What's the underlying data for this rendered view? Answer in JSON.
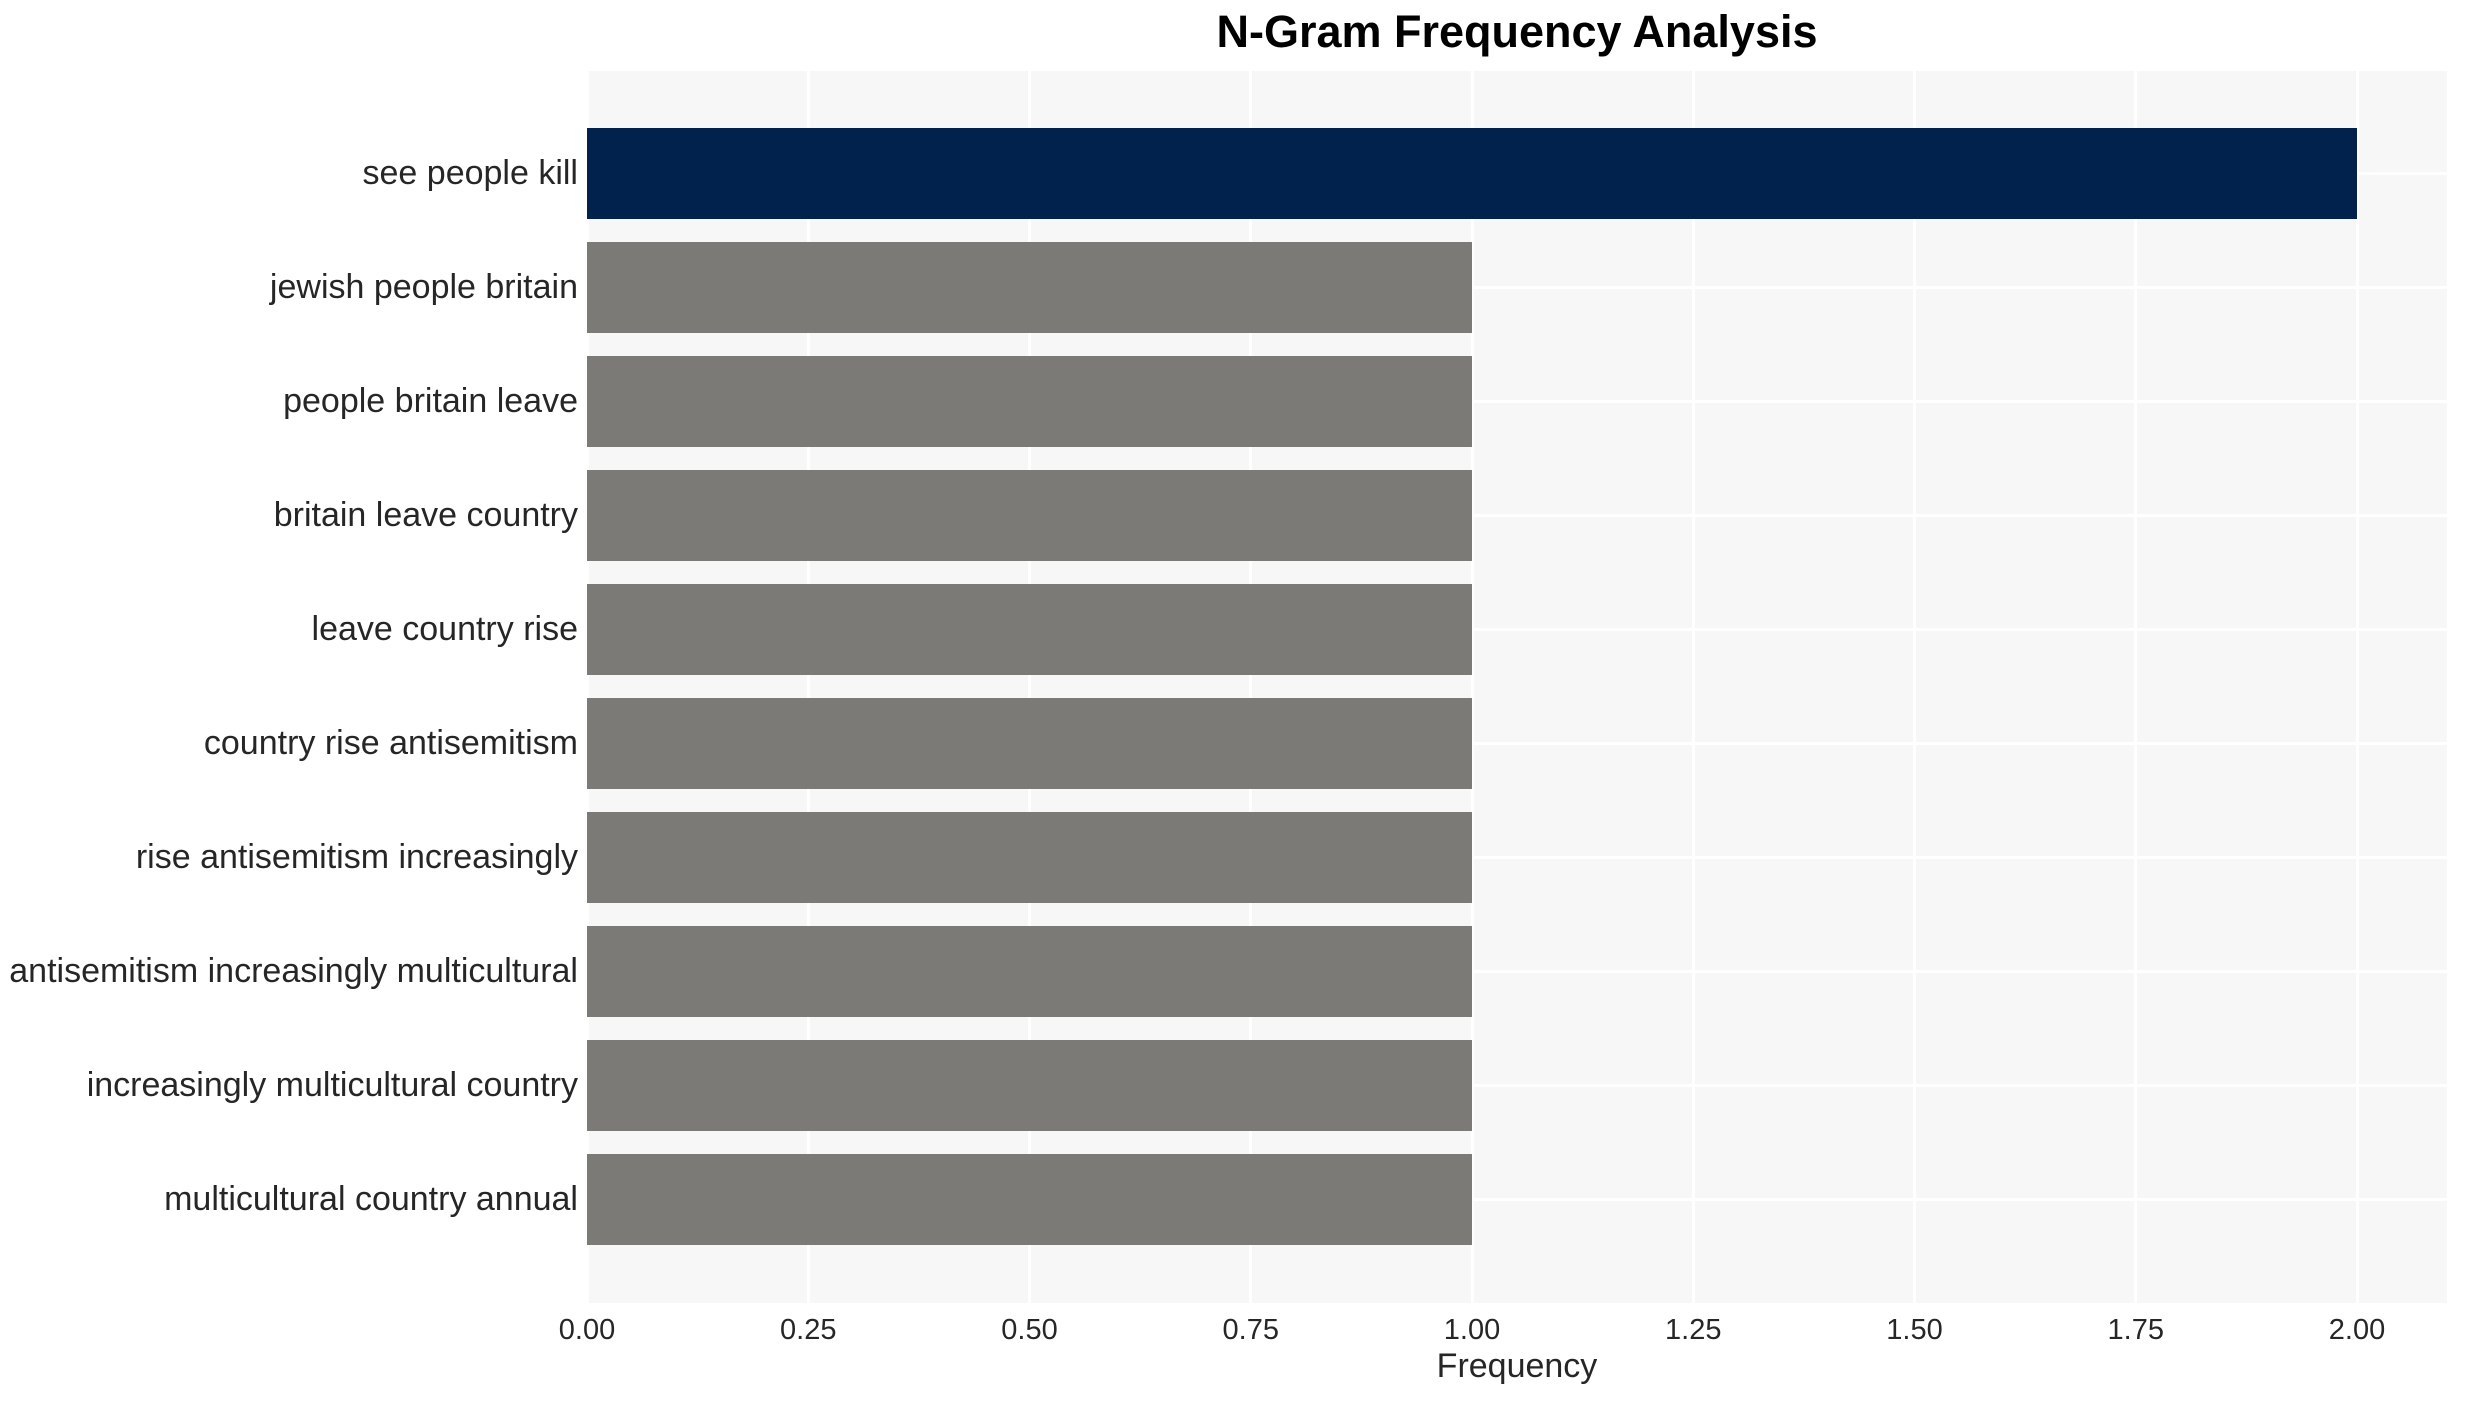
{
  "chart_data": {
    "type": "bar",
    "orientation": "horizontal",
    "title": "N-Gram Frequency Analysis",
    "xlabel": "Frequency",
    "ylabel": "",
    "categories": [
      "see people kill",
      "jewish people britain",
      "people britain leave",
      "britain leave country",
      "leave country rise",
      "country rise antisemitism",
      "rise antisemitism increasingly",
      "antisemitism increasingly multicultural",
      "increasingly multicultural country",
      "multicultural country annual"
    ],
    "values": [
      2.0,
      1.0,
      1.0,
      1.0,
      1.0,
      1.0,
      1.0,
      1.0,
      1.0,
      1.0
    ],
    "bar_colors": [
      "#01224d",
      "#7b7a77",
      "#7b7a77",
      "#7b7a77",
      "#7b7a77",
      "#7b7a77",
      "#7b7a77",
      "#7b7a77",
      "#7b7a77",
      "#7b7a77"
    ],
    "x_ticks": [
      {
        "value": 0.0,
        "label": "0.00"
      },
      {
        "value": 0.25,
        "label": "0.25"
      },
      {
        "value": 0.5,
        "label": "0.50"
      },
      {
        "value": 0.75,
        "label": "0.75"
      },
      {
        "value": 1.0,
        "label": "1.00"
      },
      {
        "value": 1.25,
        "label": "1.25"
      },
      {
        "value": 1.5,
        "label": "1.50"
      },
      {
        "value": 1.75,
        "label": "1.75"
      },
      {
        "value": 2.0,
        "label": "2.00"
      }
    ],
    "xlim": [
      0,
      2.1
    ],
    "grid": true,
    "legend": false,
    "plot_bg_color": "#f7f7f7",
    "grid_color": "#ffffff",
    "text_color": "#262626"
  }
}
